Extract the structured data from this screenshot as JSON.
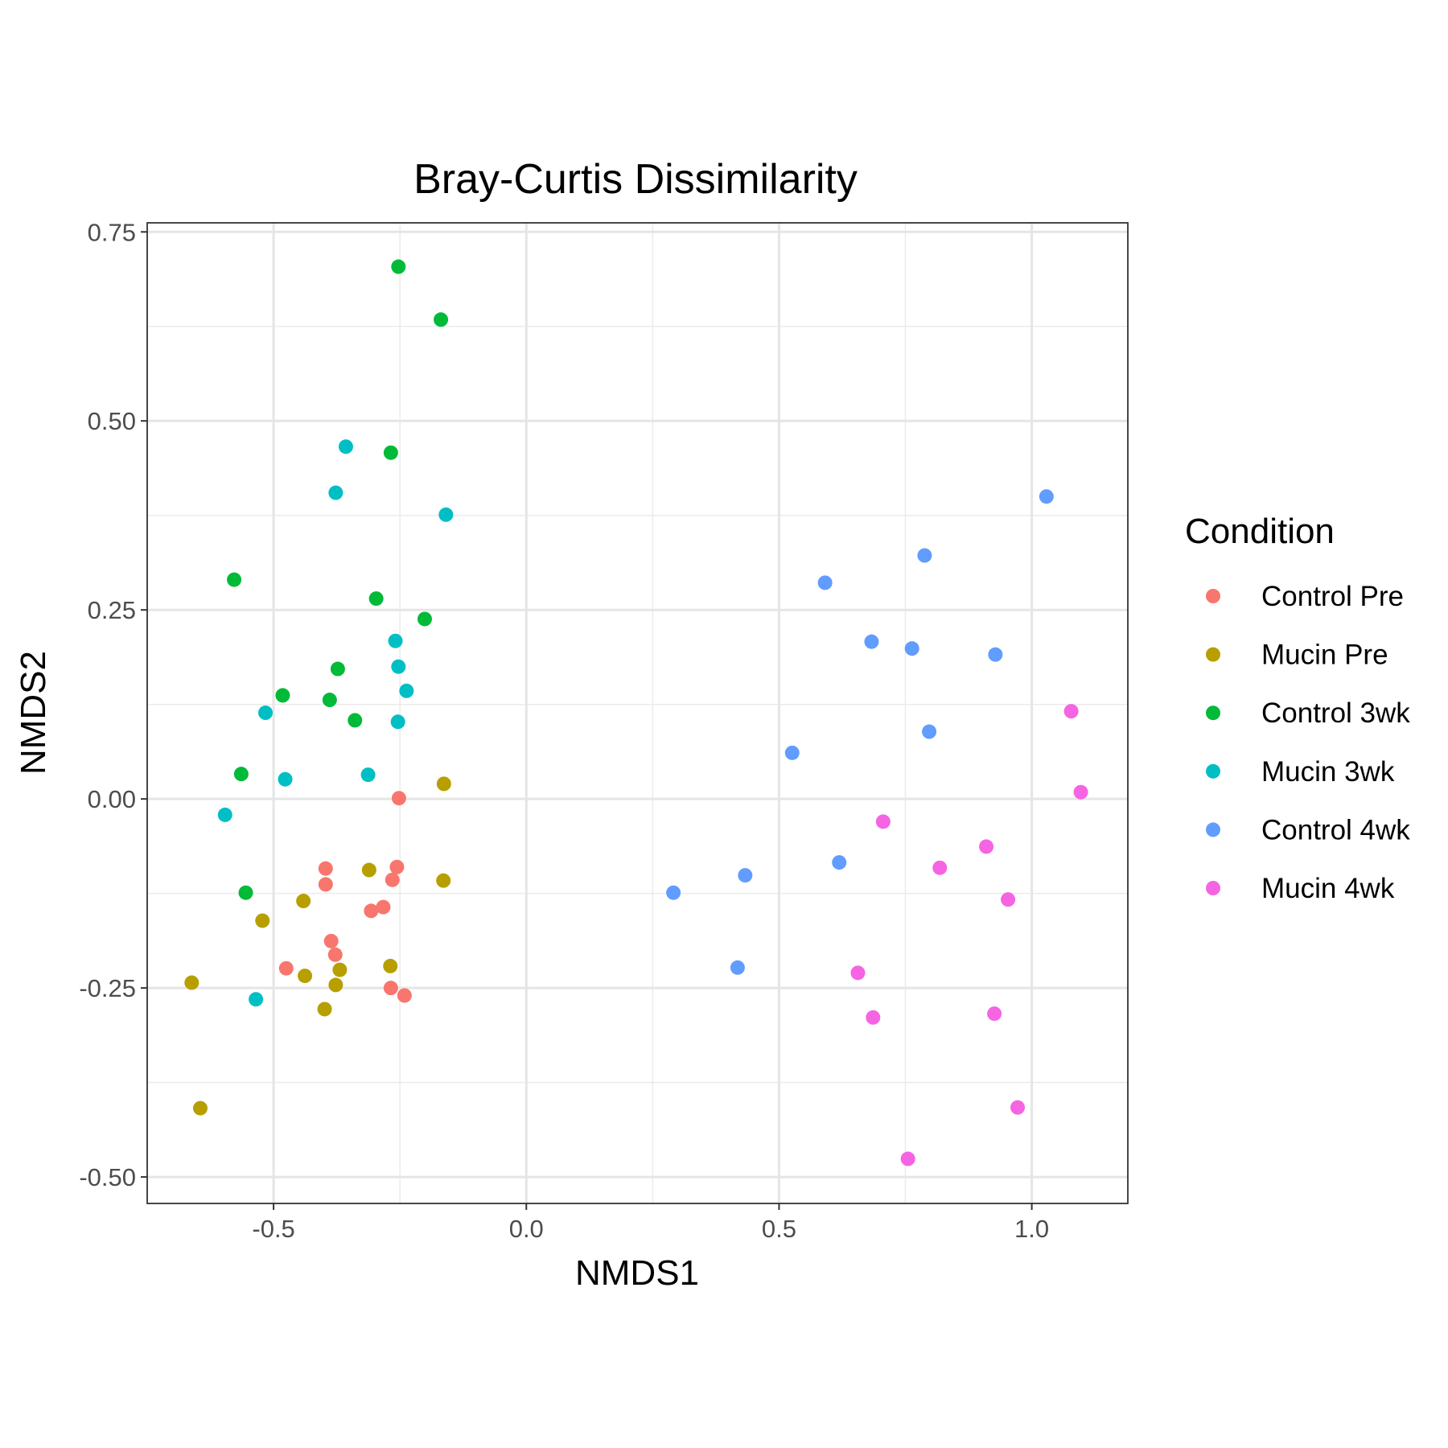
{
  "chart_data": {
    "type": "scatter",
    "title": "Bray-Curtis Dissimilarity",
    "xlabel": "NMDS1",
    "ylabel": "NMDS2",
    "xlim": [
      -0.75,
      1.19
    ],
    "ylim": [
      -0.535,
      0.762
    ],
    "x_ticks": [
      -0.5,
      0.0,
      0.5,
      1.0
    ],
    "x_tick_labels": [
      "-0.5",
      "0.0",
      "0.5",
      "1.0"
    ],
    "y_ticks": [
      -0.5,
      -0.25,
      0.0,
      0.25,
      0.5,
      0.75
    ],
    "y_tick_labels": [
      "-0.50",
      "-0.25",
      "0.00",
      "0.25",
      "0.50",
      "0.75"
    ],
    "grid": true,
    "legend": {
      "title": "Condition",
      "position": "right"
    },
    "series": [
      {
        "name": "Control Pre",
        "color": "#F8766D",
        "points": [
          [
            -0.252,
            0.001
          ],
          [
            -0.256,
            -0.09
          ],
          [
            -0.265,
            -0.107
          ],
          [
            -0.397,
            -0.092
          ],
          [
            -0.397,
            -0.113
          ],
          [
            -0.283,
            -0.143
          ],
          [
            -0.307,
            -0.148
          ],
          [
            -0.386,
            -0.188
          ],
          [
            -0.378,
            -0.206
          ],
          [
            -0.475,
            -0.224
          ],
          [
            -0.268,
            -0.25
          ],
          [
            -0.241,
            -0.26
          ]
        ]
      },
      {
        "name": "Mucin Pre",
        "color": "#B79F00",
        "points": [
          [
            -0.163,
            0.02
          ],
          [
            -0.311,
            -0.094
          ],
          [
            -0.164,
            -0.108
          ],
          [
            -0.441,
            -0.135
          ],
          [
            -0.522,
            -0.161
          ],
          [
            -0.269,
            -0.221
          ],
          [
            -0.369,
            -0.226
          ],
          [
            -0.438,
            -0.234
          ],
          [
            -0.377,
            -0.246
          ],
          [
            -0.662,
            -0.243
          ],
          [
            -0.399,
            -0.278
          ],
          [
            -0.645,
            -0.409
          ]
        ]
      },
      {
        "name": "Control 3wk",
        "color": "#00BA38",
        "points": [
          [
            -0.253,
            0.704
          ],
          [
            -0.169,
            0.634
          ],
          [
            -0.268,
            0.458
          ],
          [
            -0.578,
            0.29
          ],
          [
            -0.297,
            0.265
          ],
          [
            -0.201,
            0.238
          ],
          [
            -0.373,
            0.172
          ],
          [
            -0.482,
            0.137
          ],
          [
            -0.389,
            0.131
          ],
          [
            -0.339,
            0.104
          ],
          [
            -0.564,
            0.033
          ],
          [
            -0.555,
            -0.124
          ]
        ]
      },
      {
        "name": "Mucin 3wk",
        "color": "#00BFC4",
        "points": [
          [
            -0.357,
            0.466
          ],
          [
            -0.377,
            0.405
          ],
          [
            -0.159,
            0.376
          ],
          [
            -0.259,
            0.209
          ],
          [
            -0.253,
            0.175
          ],
          [
            -0.237,
            0.143
          ],
          [
            -0.516,
            0.114
          ],
          [
            -0.254,
            0.102
          ],
          [
            -0.313,
            0.032
          ],
          [
            -0.477,
            0.026
          ],
          [
            -0.596,
            -0.021
          ],
          [
            -0.535,
            -0.265
          ]
        ]
      },
      {
        "name": "Control 4wk",
        "color": "#619CFF",
        "points": [
          [
            1.029,
            0.4
          ],
          [
            0.788,
            0.322
          ],
          [
            0.591,
            0.286
          ],
          [
            0.683,
            0.208
          ],
          [
            0.763,
            0.199
          ],
          [
            0.928,
            0.191
          ],
          [
            0.797,
            0.089
          ],
          [
            0.526,
            0.061
          ],
          [
            0.619,
            -0.084
          ],
          [
            0.433,
            -0.101
          ],
          [
            0.291,
            -0.124
          ],
          [
            0.418,
            -0.223
          ]
        ]
      },
      {
        "name": "Mucin 4wk",
        "color": "#F564E3",
        "points": [
          [
            1.078,
            0.116
          ],
          [
            1.097,
            0.009
          ],
          [
            0.706,
            -0.03
          ],
          [
            0.91,
            -0.063
          ],
          [
            0.818,
            -0.091
          ],
          [
            0.953,
            -0.133
          ],
          [
            0.656,
            -0.23
          ],
          [
            0.686,
            -0.289
          ],
          [
            0.926,
            -0.284
          ],
          [
            0.972,
            -0.408
          ],
          [
            0.755,
            -0.476
          ]
        ]
      }
    ]
  }
}
